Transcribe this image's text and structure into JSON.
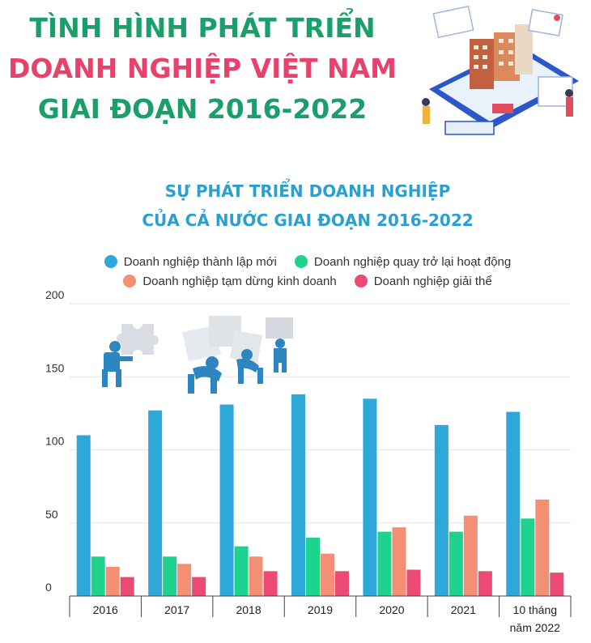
{
  "header": {
    "title_lines": [
      "TÌNH HÌNH PHÁT TRIỂN",
      "DOANH NGHIỆP VIỆT NAM",
      "GIAI ĐOẠN 2016-2022"
    ]
  },
  "colors": {
    "title_green": "#1a9e6a",
    "title_pink": "#e8426c",
    "subtitle_blue": "#2a9fd0"
  },
  "chart_data": {
    "type": "bar",
    "title_lines": [
      "SỰ PHÁT TRIỂN DOANH NGHIỆP",
      "CỦA CẢ NƯỚC GIAI ĐOẠN 2016-2022"
    ],
    "categories": [
      "2016",
      "2017",
      "2018",
      "2019",
      "2020",
      "2021",
      "10 tháng\nnăm 2022"
    ],
    "series": [
      {
        "name": "Doanh nghiệp thành lập mới",
        "color": "#2ea8d9",
        "values": [
          110,
          127,
          131,
          138,
          135,
          117,
          126
        ]
      },
      {
        "name": "Doanh nghiệp quay trở lại hoạt động",
        "color": "#1dd38e",
        "values": [
          27,
          27,
          34,
          40,
          44,
          44,
          53
        ]
      },
      {
        "name": "Doanh nghiệp tạm dừng kinh doanh",
        "color": "#f28f74",
        "values": [
          20,
          22,
          27,
          29,
          47,
          55,
          66
        ]
      },
      {
        "name": "Doanh nghiệp giải thể",
        "color": "#ea4a74",
        "values": [
          13,
          13,
          17,
          17,
          18,
          17,
          16
        ]
      }
    ],
    "yticks": [
      0,
      50,
      100,
      150,
      200
    ],
    "ylim": [
      0,
      200
    ],
    "grid": true,
    "legend": "top-center"
  }
}
